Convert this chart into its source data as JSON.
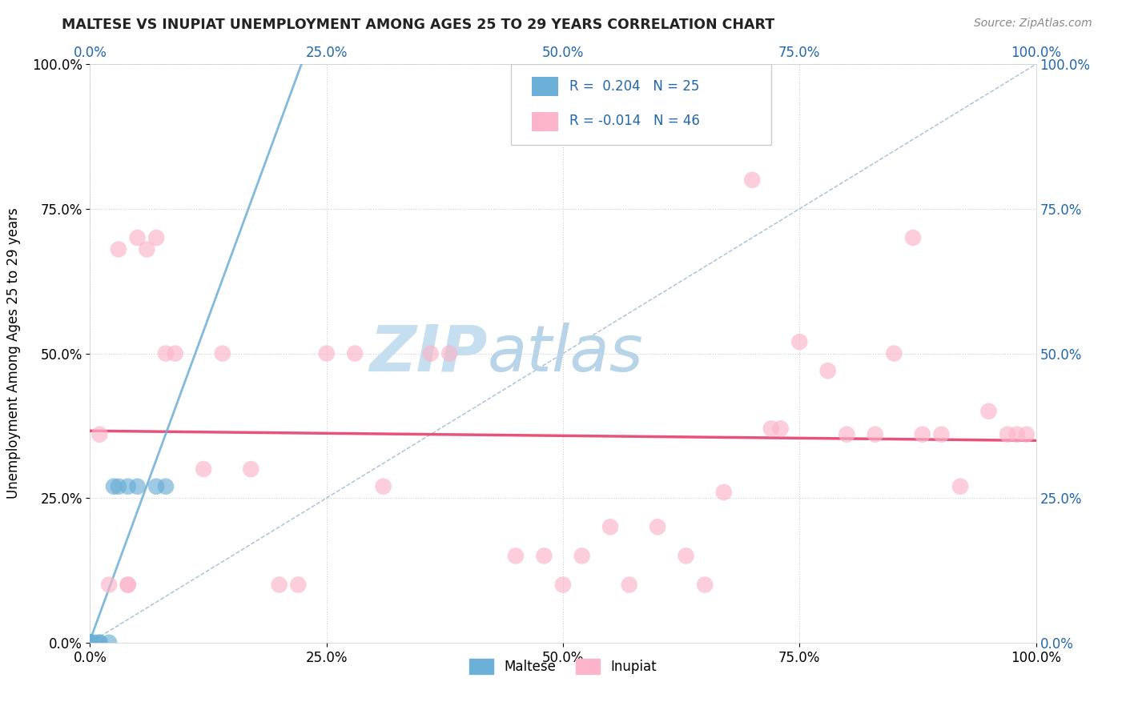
{
  "title": "MALTESE VS INUPIAT UNEMPLOYMENT AMONG AGES 25 TO 29 YEARS CORRELATION CHART",
  "source": "Source: ZipAtlas.com",
  "ylabel": "Unemployment Among Ages 25 to 29 years",
  "xlim": [
    0,
    1
  ],
  "ylim": [
    0,
    1
  ],
  "xticks": [
    0.0,
    0.25,
    0.5,
    0.75,
    1.0
  ],
  "yticks": [
    0.0,
    0.25,
    0.5,
    0.75,
    1.0
  ],
  "xtick_labels": [
    "0.0%",
    "25.0%",
    "50.0%",
    "75.0%",
    "100.0%"
  ],
  "ytick_labels": [
    "0.0%",
    "25.0%",
    "50.0%",
    "75.0%",
    "100.0%"
  ],
  "maltese_color": "#6baed6",
  "inupiat_color": "#fbb4c9",
  "maltese_R": 0.204,
  "maltese_N": 25,
  "inupiat_R": -0.014,
  "inupiat_N": 46,
  "legend_color": "#2166ac",
  "watermark_zip": "ZIP",
  "watermark_atlas": "atlas",
  "watermark_color_zip": "#c8dff0",
  "watermark_color_atlas": "#c8dff0",
  "background_color": "#ffffff",
  "grid_color": "#cccccc",
  "diagonal_color": "#9bb8d4",
  "maltese_reg_color": "#6baed6",
  "inupiat_reg_color": "#e8537a",
  "maltese_x": [
    0.0,
    0.0,
    0.0,
    0.0,
    0.0,
    0.0,
    0.0,
    0.0,
    0.0,
    0.0,
    0.0,
    0.0,
    0.0,
    0.0,
    0.0,
    0.005,
    0.01,
    0.01,
    0.02,
    0.025,
    0.03,
    0.04,
    0.05,
    0.07,
    0.08
  ],
  "maltese_y": [
    0.0,
    0.0,
    0.0,
    0.0,
    0.0,
    0.0,
    0.0,
    0.0,
    0.0,
    0.0,
    0.0,
    0.0,
    0.0,
    0.0,
    0.0,
    0.0,
    0.0,
    0.0,
    0.0,
    0.27,
    0.27,
    0.27,
    0.27,
    0.27,
    0.27
  ],
  "inupiat_x": [
    0.01,
    0.02,
    0.03,
    0.04,
    0.04,
    0.05,
    0.06,
    0.07,
    0.08,
    0.09,
    0.12,
    0.14,
    0.17,
    0.2,
    0.22,
    0.25,
    0.28,
    0.31,
    0.36,
    0.38,
    0.45,
    0.48,
    0.5,
    0.52,
    0.55,
    0.57,
    0.6,
    0.63,
    0.65,
    0.67,
    0.7,
    0.72,
    0.73,
    0.75,
    0.78,
    0.8,
    0.83,
    0.85,
    0.87,
    0.88,
    0.9,
    0.92,
    0.95,
    0.97,
    0.98,
    0.99
  ],
  "inupiat_y": [
    0.36,
    0.1,
    0.68,
    0.1,
    0.1,
    0.7,
    0.68,
    0.7,
    0.5,
    0.5,
    0.3,
    0.5,
    0.3,
    0.1,
    0.1,
    0.5,
    0.5,
    0.27,
    0.5,
    0.5,
    0.15,
    0.15,
    0.1,
    0.15,
    0.2,
    0.1,
    0.2,
    0.15,
    0.1,
    0.26,
    0.8,
    0.37,
    0.37,
    0.52,
    0.47,
    0.36,
    0.36,
    0.5,
    0.7,
    0.36,
    0.36,
    0.27,
    0.4,
    0.36,
    0.36,
    0.36
  ]
}
